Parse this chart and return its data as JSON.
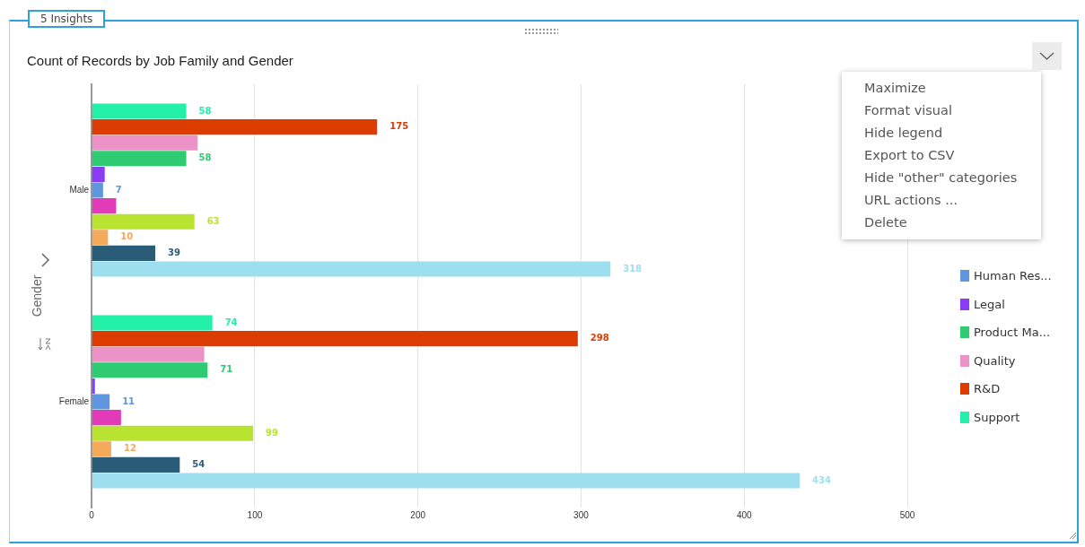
{
  "chart_data": {
    "type": "bar",
    "orientation": "horizontal",
    "title": "Count of Records by Job Family and Gender",
    "ylabel": "Gender",
    "categories": [
      "Male",
      "Female"
    ],
    "series": [
      {
        "color": "#9ddfef",
        "values": [
          318,
          434
        ],
        "value_labels": [
          "318",
          "434"
        ]
      },
      {
        "color": "#2a5c78",
        "values": [
          39,
          54
        ],
        "value_labels": [
          "39",
          "54"
        ]
      },
      {
        "color": "#f5a95a",
        "values": [
          10,
          12
        ],
        "value_labels": [
          "10",
          "12"
        ]
      },
      {
        "color": "#b8e330",
        "values": [
          63,
          99
        ],
        "value_labels": [
          "63",
          "99"
        ]
      },
      {
        "color": "#e23bb8",
        "values": [
          15,
          18
        ],
        "value_labels": [
          null,
          null
        ]
      },
      {
        "name": "Human Res...",
        "color": "#6096e0",
        "values": [
          7,
          11
        ],
        "value_labels": [
          "7",
          "11"
        ]
      },
      {
        "name": "Legal",
        "color": "#8a3cf5",
        "values": [
          8,
          2
        ],
        "value_labels": [
          null,
          null
        ]
      },
      {
        "name": "Product Ma...",
        "color": "#2fcb72",
        "values": [
          58,
          71
        ],
        "value_labels": [
          "58",
          "71"
        ]
      },
      {
        "name": "Quality",
        "color": "#ec92c6",
        "values": [
          65,
          69
        ],
        "value_labels": [
          null,
          null
        ]
      },
      {
        "name": "R&D",
        "color": "#dd3c00",
        "values": [
          175,
          298
        ],
        "value_labels": [
          "175",
          "298"
        ]
      },
      {
        "name": "Support",
        "color": "#22f0a8",
        "values": [
          58,
          74
        ],
        "value_labels": [
          "58",
          "74"
        ]
      }
    ],
    "xlim": [
      0,
      500
    ],
    "xticks": [
      0,
      100,
      200,
      300,
      400,
      500
    ],
    "grid": "x",
    "legend": "right",
    "annotations": [
      "5 Insights",
      "Maximize",
      "Format visual",
      "Hide legend",
      "Export to CSV",
      "Hide \"other\" categories",
      "URL actions ...",
      "Delete"
    ]
  }
}
